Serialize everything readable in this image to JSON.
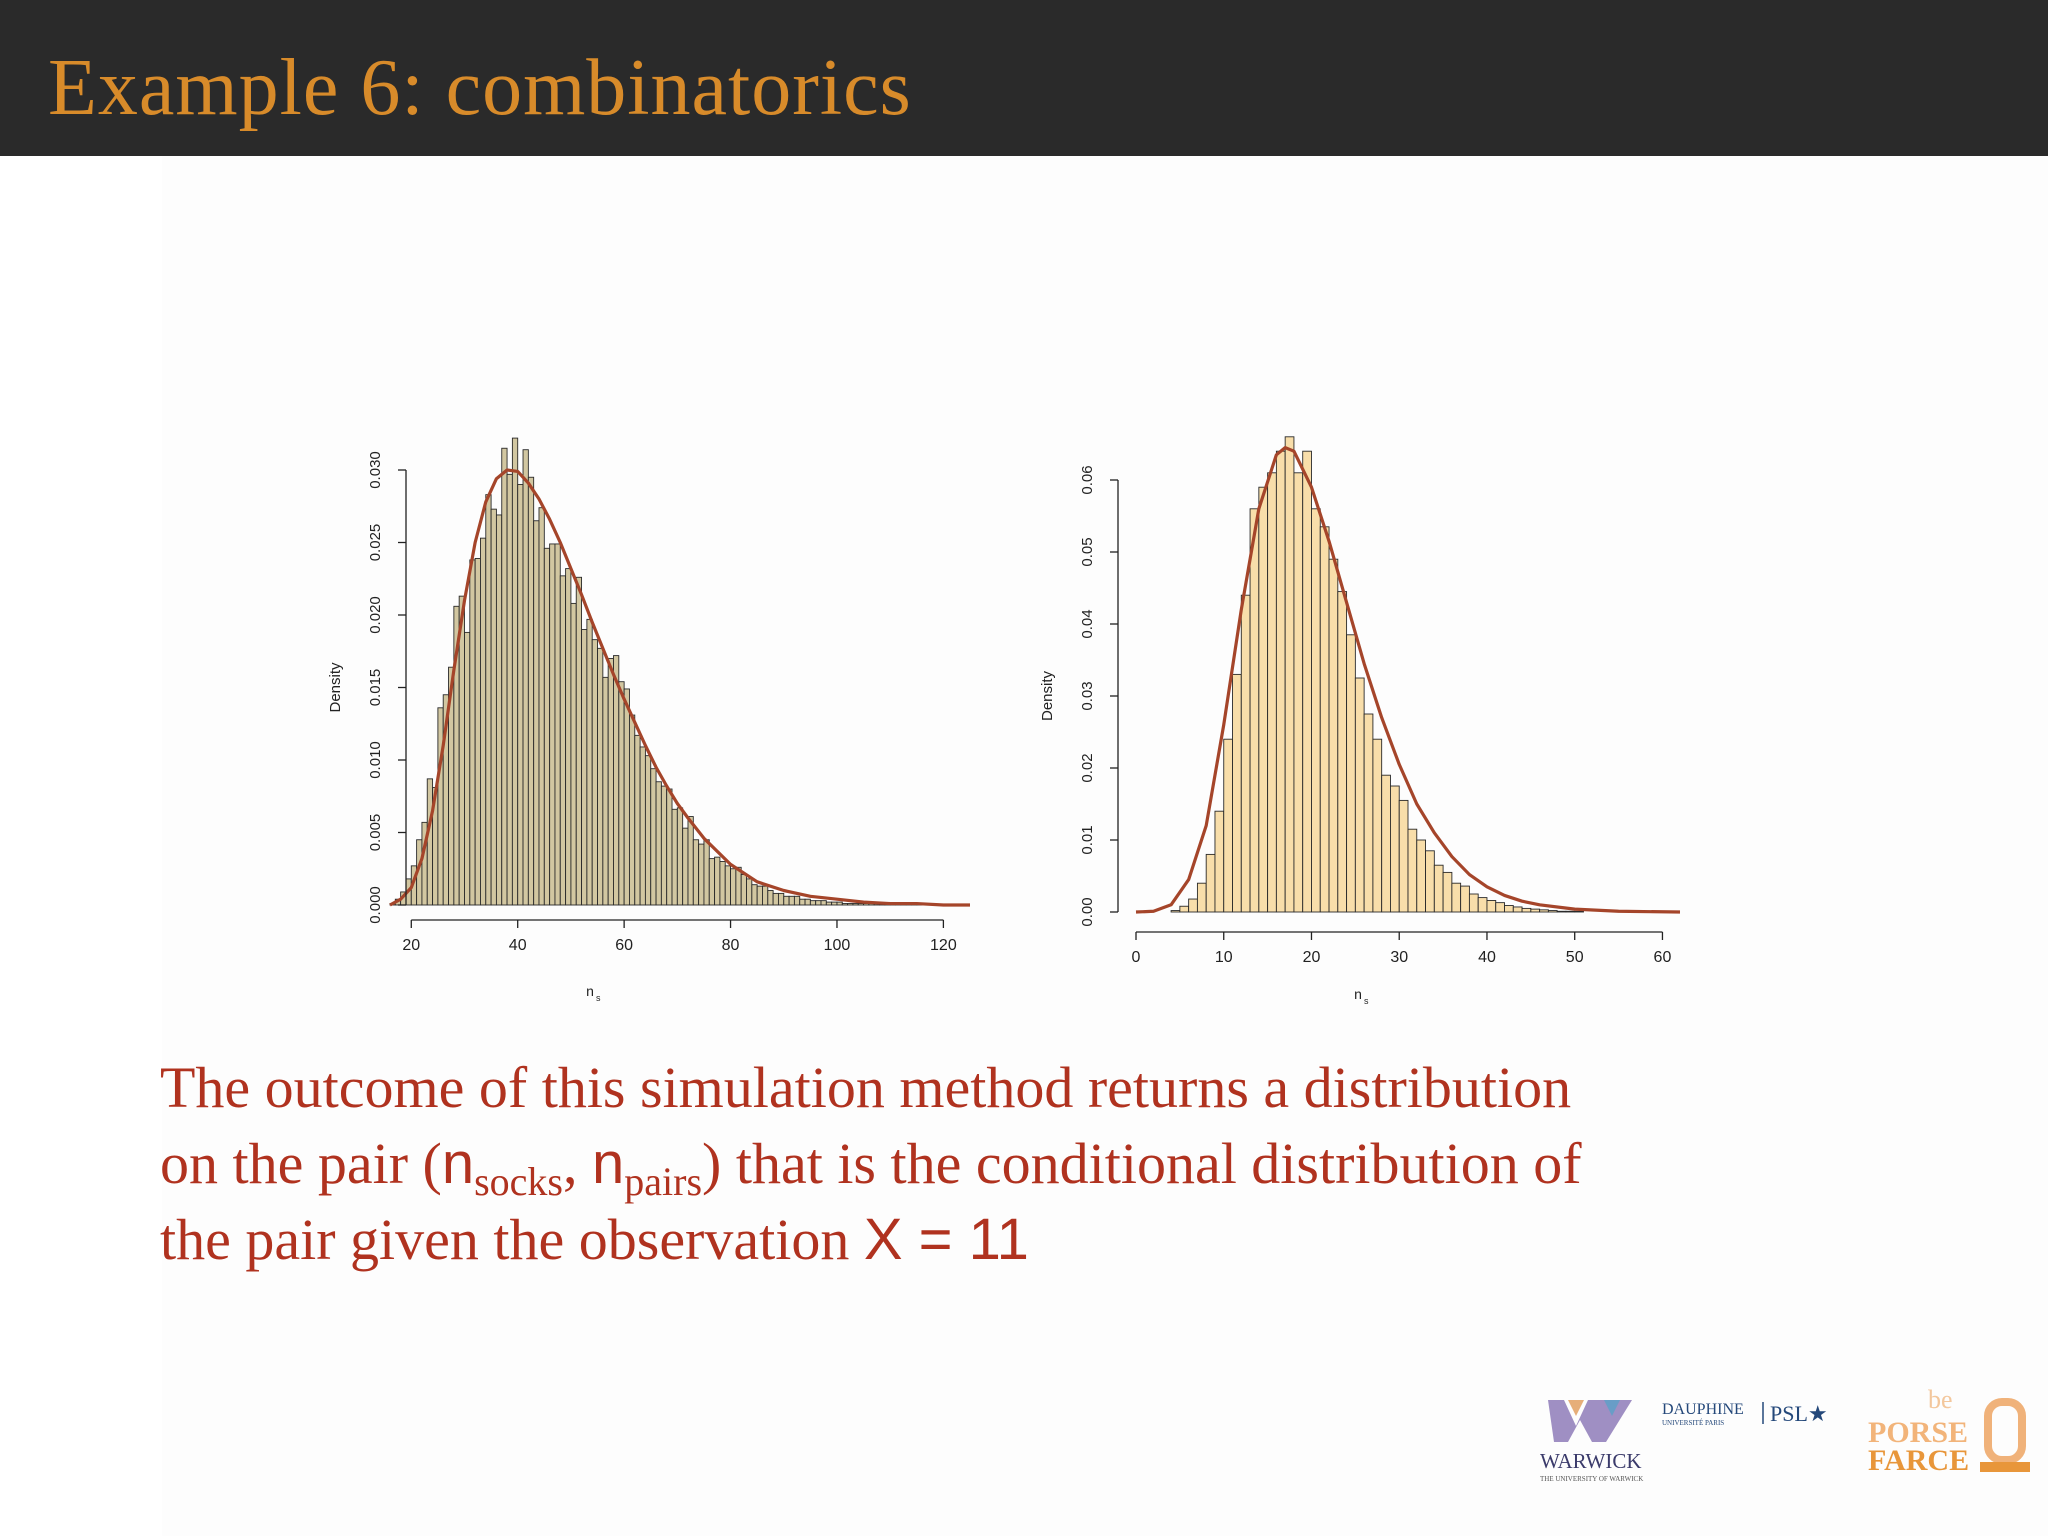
{
  "slide": {
    "title": "Example 6: combinatorics",
    "body": {
      "p1": "The outcome of this simulation method returns a distribution",
      "p2_a": "on the pair (",
      "n1": "n",
      "sub1": "socks",
      "comma": ", ",
      "n2": "n",
      "sub2": "pairs",
      "p2_b": ") that is the conditional distribution of",
      "p3_a": "the pair given the observation ",
      "eq": "X = 11"
    }
  },
  "logos": {
    "warwick": "WARWICK",
    "warwick_sub": "THE UNIVERSITY OF WARWICK",
    "dauphine": "DAUPHINE",
    "dauphine_sub": "UNIVERSITÉ PARIS",
    "psl": "PSL★",
    "bpf_1": "be",
    "bpf_2": "PORSE",
    "bpf_3": "FARCE"
  },
  "colors": {
    "title": "#d88b2a",
    "body_text": "#b0321f",
    "curve": "#a5452a",
    "bar_fill_left": "#d2c7a1",
    "bar_fill_right": "#f8deaa",
    "header_bg": "#2a2a2a"
  },
  "chart_data": [
    {
      "type": "bar",
      "ylabel": "Density",
      "xlabel": "n",
      "xlabel_sub": "s",
      "xlim": [
        16,
        125
      ],
      "ylim": [
        0,
        0.03
      ],
      "xticks": [
        20,
        40,
        60,
        80,
        100,
        120
      ],
      "yticks": [
        0.0,
        0.005,
        0.01,
        0.015,
        0.02,
        0.025,
        0.03
      ],
      "ytick_labels": [
        "0.000",
        "0.005",
        "0.010",
        "0.015",
        "0.020",
        "0.025",
        "0.030"
      ],
      "bin_start": 16,
      "bin_width": 1,
      "values": [
        0.0001,
        0.0004,
        0.0009,
        0.0018,
        0.0027,
        0.0045,
        0.0057,
        0.0087,
        0.0081,
        0.0136,
        0.0145,
        0.0164,
        0.0206,
        0.0213,
        0.0188,
        0.0238,
        0.0239,
        0.0253,
        0.0283,
        0.0273,
        0.0269,
        0.0315,
        0.0297,
        0.0322,
        0.029,
        0.0314,
        0.0295,
        0.0265,
        0.0274,
        0.0246,
        0.0249,
        0.0249,
        0.0227,
        0.0232,
        0.0208,
        0.0226,
        0.019,
        0.0197,
        0.0183,
        0.0177,
        0.0157,
        0.017,
        0.0172,
        0.0154,
        0.0149,
        0.0131,
        0.0117,
        0.0109,
        0.0103,
        0.0094,
        0.0085,
        0.0082,
        0.008,
        0.0066,
        0.0067,
        0.0053,
        0.0061,
        0.0045,
        0.0042,
        0.0045,
        0.0032,
        0.0033,
        0.003,
        0.0027,
        0.0025,
        0.0026,
        0.0021,
        0.0018,
        0.0014,
        0.0013,
        0.0013,
        0.001,
        0.0008,
        0.0008,
        0.0006,
        0.0006,
        0.0006,
        0.0004,
        0.0004,
        0.0003,
        0.0003,
        0.0003,
        0.0002,
        0.0002,
        0.0002,
        0.0001,
        0.0001,
        0.0001,
        0.0001,
        0.0001,
        0.0001,
        0.0001,
        0.0001,
        0.0001,
        0.0001,
        0.0001,
        0.0001,
        0.0001,
        0.0001,
        0.0001
      ],
      "density_curve": {
        "x": [
          16,
          18,
          20,
          22,
          24,
          26,
          28,
          30,
          32,
          34,
          36,
          38,
          40,
          42,
          44,
          46,
          48,
          50,
          52,
          54,
          56,
          58,
          60,
          62,
          64,
          66,
          68,
          70,
          72,
          75,
          80,
          85,
          90,
          95,
          100,
          105,
          110,
          115,
          120,
          125
        ],
        "y": [
          0.0,
          0.0004,
          0.0012,
          0.0032,
          0.0065,
          0.011,
          0.0162,
          0.021,
          0.025,
          0.0278,
          0.0294,
          0.03,
          0.0299,
          0.0291,
          0.028,
          0.0266,
          0.025,
          0.0232,
          0.0214,
          0.0195,
          0.0177,
          0.0159,
          0.0142,
          0.0126,
          0.011,
          0.0095,
          0.0082,
          0.007,
          0.006,
          0.0046,
          0.0028,
          0.0016,
          0.001,
          0.0006,
          0.0004,
          0.0002,
          0.0001,
          0.0001,
          0.0,
          0.0
        ]
      }
    },
    {
      "type": "bar",
      "ylabel": "Density",
      "xlabel": "n",
      "xlabel_sub": "s",
      "xlim": [
        0,
        62
      ],
      "ylim": [
        0,
        0.06
      ],
      "xticks": [
        0,
        10,
        20,
        30,
        40,
        50,
        60
      ],
      "yticks": [
        0.0,
        0.01,
        0.02,
        0.03,
        0.04,
        0.05,
        0.06
      ],
      "ytick_labels": [
        "0.00",
        "0.01",
        "0.02",
        "0.03",
        "0.04",
        "0.05",
        "0.06"
      ],
      "bin_start": 4,
      "bin_width": 1,
      "values": [
        0.0002,
        0.0008,
        0.0018,
        0.004,
        0.008,
        0.014,
        0.024,
        0.033,
        0.044,
        0.056,
        0.059,
        0.061,
        0.064,
        0.066,
        0.061,
        0.064,
        0.056,
        0.0535,
        0.049,
        0.0445,
        0.0385,
        0.0325,
        0.0275,
        0.024,
        0.019,
        0.0175,
        0.0155,
        0.0115,
        0.01,
        0.0085,
        0.0065,
        0.0055,
        0.004,
        0.0036,
        0.0025,
        0.002,
        0.0016,
        0.0013,
        0.0009,
        0.0007,
        0.0005,
        0.0004,
        0.0003,
        0.0002,
        0.0001,
        0.0001,
        0.0001
      ],
      "density_curve": {
        "x": [
          0,
          2,
          4,
          6,
          8,
          10,
          12,
          14,
          16,
          17,
          18,
          20,
          22,
          24,
          26,
          28,
          30,
          32,
          34,
          36,
          38,
          40,
          42,
          44,
          46,
          50,
          55,
          62
        ],
        "y": [
          0.0,
          0.0001,
          0.001,
          0.0045,
          0.012,
          0.026,
          0.042,
          0.056,
          0.0635,
          0.0645,
          0.064,
          0.059,
          0.0515,
          0.043,
          0.0345,
          0.027,
          0.0205,
          0.015,
          0.011,
          0.0077,
          0.0052,
          0.0035,
          0.0023,
          0.0015,
          0.001,
          0.0004,
          0.0001,
          0.0
        ]
      }
    }
  ]
}
